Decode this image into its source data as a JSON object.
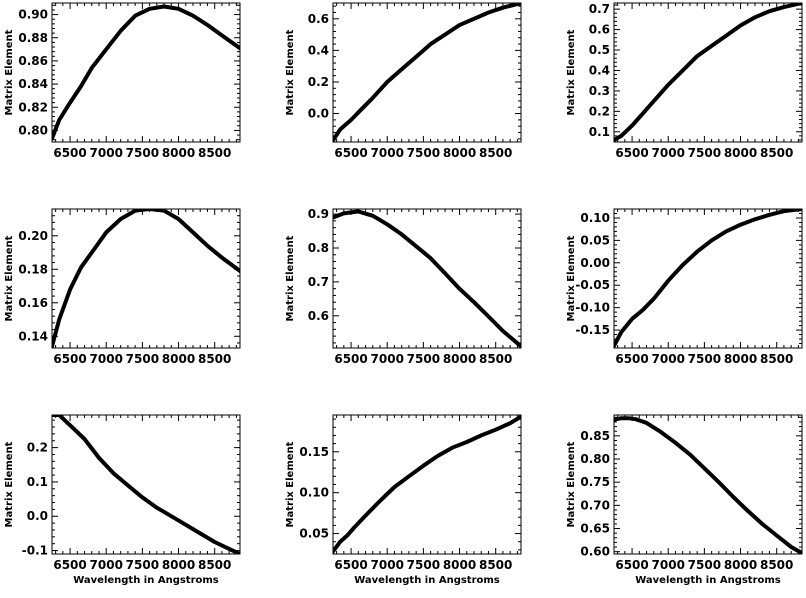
{
  "chart_data": [
    {
      "type": "line",
      "row": 0,
      "col": 0,
      "xlabel": "",
      "ylabel": "Matrix Element",
      "xlim": [
        6250,
        8850
      ],
      "ylim": [
        0.79,
        0.91
      ],
      "xticks": [
        6500,
        7000,
        7500,
        8000,
        8500
      ],
      "xtick_labels": [
        "6500",
        "7000",
        "7500",
        "8000",
        "8500"
      ],
      "yticks": [
        0.8,
        0.82,
        0.84,
        0.86,
        0.88,
        0.9
      ],
      "ytick_labels": [
        "0.80",
        "0.82",
        "0.84",
        "0.86",
        "0.88",
        "0.90"
      ],
      "series": [
        {
          "x": [
            6250,
            6350,
            6500,
            6650,
            6800,
            7000,
            7200,
            7400,
            7600,
            7800,
            8000,
            8200,
            8400,
            8600,
            8850
          ],
          "values": [
            0.793,
            0.809,
            0.824,
            0.838,
            0.854,
            0.87,
            0.886,
            0.899,
            0.905,
            0.907,
            0.905,
            0.899,
            0.891,
            0.882,
            0.871
          ]
        }
      ]
    },
    {
      "type": "line",
      "row": 0,
      "col": 1,
      "xlabel": "",
      "ylabel": "Matrix Element",
      "xlim": [
        6250,
        8850
      ],
      "ylim": [
        -0.18,
        0.7
      ],
      "xticks": [
        6500,
        7000,
        7500,
        8000,
        8500
      ],
      "xtick_labels": [
        "6500",
        "7000",
        "7500",
        "8000",
        "8500"
      ],
      "yticks": [
        0.0,
        0.2,
        0.4,
        0.6
      ],
      "ytick_labels": [
        "0.0",
        "0.2",
        "0.4",
        "0.6"
      ],
      "series": [
        {
          "x": [
            6250,
            6350,
            6500,
            6650,
            6800,
            7000,
            7200,
            7400,
            7600,
            7800,
            8000,
            8200,
            8400,
            8600,
            8850
          ],
          "values": [
            -0.17,
            -0.1,
            -0.04,
            0.03,
            0.1,
            0.2,
            0.28,
            0.36,
            0.44,
            0.5,
            0.56,
            0.6,
            0.64,
            0.67,
            0.7
          ]
        }
      ]
    },
    {
      "type": "line",
      "row": 0,
      "col": 2,
      "xlabel": "",
      "ylabel": "Matrix Element",
      "xlim": [
        6250,
        8850
      ],
      "ylim": [
        0.05,
        0.73
      ],
      "xticks": [
        6500,
        7000,
        7500,
        8000,
        8500
      ],
      "xtick_labels": [
        "6500",
        "7000",
        "7500",
        "8000",
        "8500"
      ],
      "yticks": [
        0.1,
        0.2,
        0.3,
        0.4,
        0.5,
        0.6,
        0.7
      ],
      "ytick_labels": [
        "0.1",
        "0.2",
        "0.3",
        "0.4",
        "0.5",
        "0.6",
        "0.7"
      ],
      "series": [
        {
          "x": [
            6250,
            6350,
            6500,
            6650,
            6800,
            7000,
            7200,
            7400,
            7600,
            7800,
            8000,
            8200,
            8400,
            8600,
            8850
          ],
          "values": [
            0.06,
            0.08,
            0.13,
            0.19,
            0.25,
            0.33,
            0.4,
            0.47,
            0.52,
            0.57,
            0.62,
            0.66,
            0.69,
            0.71,
            0.73
          ]
        }
      ]
    },
    {
      "type": "line",
      "row": 1,
      "col": 0,
      "xlabel": "",
      "ylabel": "Matrix Element",
      "xlim": [
        6250,
        8850
      ],
      "ylim": [
        0.133,
        0.216
      ],
      "xticks": [
        6500,
        7000,
        7500,
        8000,
        8500
      ],
      "xtick_labels": [
        "6500",
        "7000",
        "7500",
        "8000",
        "8500"
      ],
      "yticks": [
        0.14,
        0.16,
        0.18,
        0.2
      ],
      "ytick_labels": [
        "0.14",
        "0.16",
        "0.18",
        "0.20"
      ],
      "series": [
        {
          "x": [
            6250,
            6350,
            6500,
            6650,
            6800,
            7000,
            7200,
            7400,
            7600,
            7800,
            8000,
            8200,
            8400,
            8600,
            8850
          ],
          "values": [
            0.134,
            0.15,
            0.168,
            0.181,
            0.19,
            0.202,
            0.21,
            0.215,
            0.216,
            0.215,
            0.21,
            0.202,
            0.194,
            0.187,
            0.179
          ]
        }
      ]
    },
    {
      "type": "line",
      "row": 1,
      "col": 1,
      "xlabel": "",
      "ylabel": "Matrix Element",
      "xlim": [
        6250,
        8850
      ],
      "ylim": [
        0.505,
        0.915
      ],
      "xticks": [
        6500,
        7000,
        7500,
        8000,
        8500
      ],
      "xtick_labels": [
        "6500",
        "7000",
        "7500",
        "8000",
        "8500"
      ],
      "yticks": [
        0.6,
        0.7,
        0.8,
        0.9
      ],
      "ytick_labels": [
        "0.6",
        "0.7",
        "0.8",
        "0.9"
      ],
      "series": [
        {
          "x": [
            6250,
            6400,
            6600,
            6800,
            7000,
            7200,
            7400,
            7600,
            7800,
            8000,
            8200,
            8400,
            8600,
            8850
          ],
          "values": [
            0.89,
            0.902,
            0.908,
            0.895,
            0.87,
            0.84,
            0.805,
            0.77,
            0.725,
            0.68,
            0.64,
            0.598,
            0.555,
            0.51
          ]
        }
      ]
    },
    {
      "type": "line",
      "row": 1,
      "col": 2,
      "xlabel": "",
      "ylabel": "Matrix Element",
      "xlim": [
        6250,
        8850
      ],
      "ylim": [
        -0.19,
        0.12
      ],
      "xticks": [
        6500,
        7000,
        7500,
        8000,
        8500
      ],
      "xtick_labels": [
        "6500",
        "7000",
        "7500",
        "8000",
        "8500"
      ],
      "yticks": [
        -0.15,
        -0.1,
        -0.05,
        0.0,
        0.05,
        0.1
      ],
      "ytick_labels": [
        "-0.15",
        "-0.10",
        "-0.05",
        "0.00",
        "0.05",
        "0.10"
      ],
      "series": [
        {
          "x": [
            6250,
            6350,
            6500,
            6650,
            6800,
            7000,
            7200,
            7400,
            7600,
            7800,
            8000,
            8200,
            8400,
            8600,
            8850
          ],
          "values": [
            -0.185,
            -0.155,
            -0.125,
            -0.105,
            -0.08,
            -0.04,
            -0.005,
            0.025,
            0.05,
            0.07,
            0.085,
            0.097,
            0.107,
            0.115,
            0.12
          ]
        }
      ]
    },
    {
      "type": "line",
      "row": 2,
      "col": 0,
      "xlabel": "Wavelength in Angstroms",
      "ylabel": "Matrix Element",
      "xlim": [
        6250,
        8850
      ],
      "ylim": [
        -0.11,
        0.295
      ],
      "xticks": [
        6500,
        7000,
        7500,
        8000,
        8500
      ],
      "xtick_labels": [
        "6500",
        "7000",
        "7500",
        "8000",
        "8500"
      ],
      "yticks": [
        -0.1,
        0.0,
        0.1,
        0.2
      ],
      "ytick_labels": [
        "-0.1",
        "0.0",
        "0.1",
        "0.2"
      ],
      "series": [
        {
          "x": [
            6250,
            6350,
            6450,
            6550,
            6700,
            6900,
            7100,
            7300,
            7500,
            7700,
            7900,
            8100,
            8300,
            8500,
            8700,
            8850
          ],
          "values": [
            0.295,
            0.295,
            0.275,
            0.255,
            0.225,
            0.17,
            0.125,
            0.09,
            0.055,
            0.025,
            0.0,
            -0.025,
            -0.05,
            -0.075,
            -0.095,
            -0.11
          ]
        }
      ]
    },
    {
      "type": "line",
      "row": 2,
      "col": 1,
      "xlabel": "Wavelength in Angstroms",
      "ylabel": "Matrix Element",
      "xlim": [
        6250,
        8850
      ],
      "ylim": [
        0.025,
        0.195
      ],
      "xticks": [
        6500,
        7000,
        7500,
        8000,
        8500
      ],
      "xtick_labels": [
        "6500",
        "7000",
        "7500",
        "8000",
        "8500"
      ],
      "yticks": [
        0.05,
        0.1,
        0.15
      ],
      "ytick_labels": [
        "0.05",
        "0.10",
        "0.15"
      ],
      "series": [
        {
          "x": [
            6250,
            6350,
            6450,
            6550,
            6700,
            6900,
            7100,
            7300,
            7500,
            7700,
            7900,
            8100,
            8300,
            8500,
            8700,
            8850
          ],
          "values": [
            0.028,
            0.04,
            0.048,
            0.058,
            0.072,
            0.09,
            0.107,
            0.12,
            0.133,
            0.145,
            0.155,
            0.162,
            0.17,
            0.177,
            0.185,
            0.193
          ]
        }
      ]
    },
    {
      "type": "line",
      "row": 2,
      "col": 2,
      "xlabel": "Wavelength in Angstroms",
      "ylabel": "Matrix Element",
      "xlim": [
        6250,
        8850
      ],
      "ylim": [
        0.595,
        0.895
      ],
      "xticks": [
        6500,
        7000,
        7500,
        8000,
        8500
      ],
      "xtick_labels": [
        "6500",
        "7000",
        "7500",
        "8000",
        "8500"
      ],
      "yticks": [
        0.6,
        0.65,
        0.7,
        0.75,
        0.8,
        0.85
      ],
      "ytick_labels": [
        "0.60",
        "0.65",
        "0.70",
        "0.75",
        "0.80",
        "0.85"
      ],
      "series": [
        {
          "x": [
            6250,
            6350,
            6450,
            6550,
            6700,
            6900,
            7100,
            7300,
            7500,
            7700,
            7900,
            8100,
            8300,
            8500,
            8700,
            8850
          ],
          "values": [
            0.885,
            0.888,
            0.888,
            0.886,
            0.878,
            0.858,
            0.835,
            0.81,
            0.78,
            0.75,
            0.718,
            0.688,
            0.66,
            0.635,
            0.61,
            0.597
          ]
        }
      ]
    }
  ]
}
